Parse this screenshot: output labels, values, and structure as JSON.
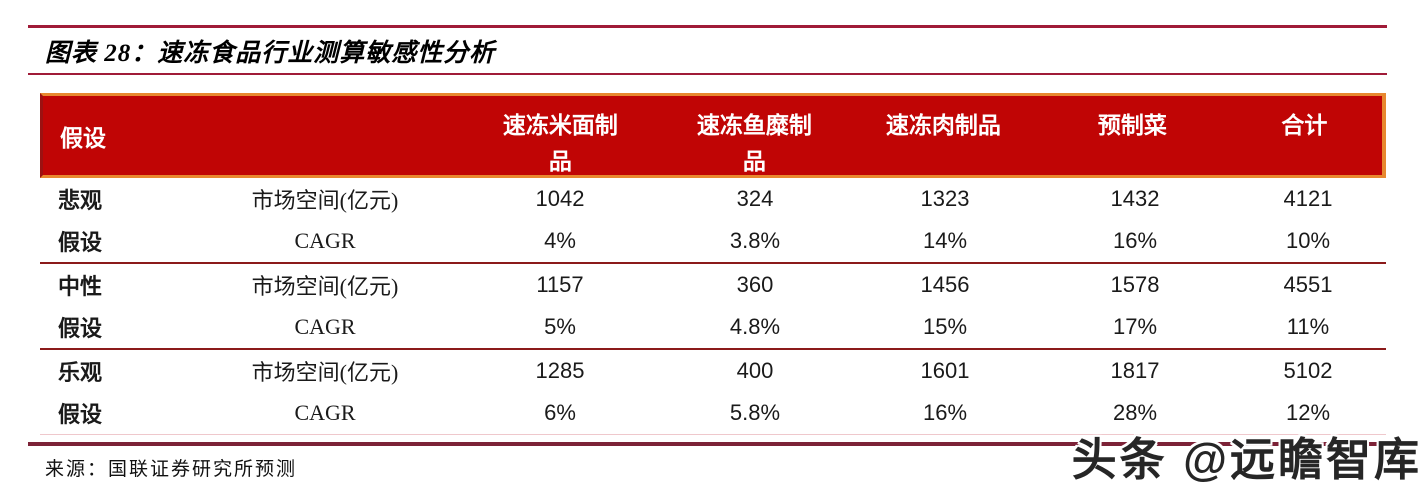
{
  "page": {
    "title": "图表 28：速冻食品行业测算敏感性分析",
    "source": "来源：国联证券研究所预测",
    "watermark": "头条 @远瞻智库"
  },
  "colors": {
    "header_bg": "#C00505",
    "header_text": "#FFFFFF",
    "header_border_orange": "#E8882F",
    "header_border_dark_red": "#9C1111",
    "title_rule": "#A01B38",
    "group_separator_rule": "#8B1A1A",
    "bottom_rule": "#7C2237",
    "body_text": "#1A1A1A"
  },
  "table": {
    "header": {
      "col_assumption": "假设",
      "col_metric": "",
      "col1": "速冻米面制\n品",
      "col2": "速冻鱼糜制\n品",
      "col3": "速冻肉制品",
      "col4": "预制菜",
      "col5": "合计"
    },
    "groups": [
      {
        "label_top": "悲观",
        "label_bottom": "假设",
        "rows": [
          {
            "metric": "市场空间(亿元)",
            "values": [
              "1042",
              "324",
              "1323",
              "1432",
              "4121"
            ]
          },
          {
            "metric": "CAGR",
            "values": [
              "4%",
              "3.8%",
              "14%",
              "16%",
              "10%"
            ]
          }
        ]
      },
      {
        "label_top": "中性",
        "label_bottom": "假设",
        "rows": [
          {
            "metric": "市场空间(亿元)",
            "values": [
              "1157",
              "360",
              "1456",
              "1578",
              "4551"
            ]
          },
          {
            "metric": "CAGR",
            "values": [
              "5%",
              "4.8%",
              "15%",
              "17%",
              "11%"
            ]
          }
        ]
      },
      {
        "label_top": "乐观",
        "label_bottom": "假设",
        "rows": [
          {
            "metric": "市场空间(亿元)",
            "values": [
              "1285",
              "400",
              "1601",
              "1817",
              "5102"
            ]
          },
          {
            "metric": "CAGR",
            "values": [
              "6%",
              "5.8%",
              "16%",
              "28%",
              "12%"
            ]
          }
        ]
      }
    ]
  },
  "chart_data": {
    "type": "table",
    "title": "图表 28：速冻食品行业测算敏感性分析",
    "columns": [
      "假设",
      "",
      "速冻米面制品",
      "速冻鱼糜制品",
      "速冻肉制品",
      "预制菜",
      "合计"
    ],
    "rows": [
      [
        "悲观假设",
        "市场空间(亿元)",
        1042,
        324,
        1323,
        1432,
        4121
      ],
      [
        "悲观假设",
        "CAGR",
        "4%",
        "3.8%",
        "14%",
        "16%",
        "10%"
      ],
      [
        "中性假设",
        "市场空间(亿元)",
        1157,
        360,
        1456,
        1578,
        4551
      ],
      [
        "中性假设",
        "CAGR",
        "5%",
        "4.8%",
        "15%",
        "17%",
        "11%"
      ],
      [
        "乐观假设",
        "市场空间(亿元)",
        1285,
        400,
        1601,
        1817,
        5102
      ],
      [
        "乐观假设",
        "CAGR",
        "6%",
        "5.8%",
        "16%",
        "28%",
        "12%"
      ]
    ],
    "source": "来源：国联证券研究所预测",
    "layout_hints": {
      "header_bg": "#C00505",
      "header_text_color": "#FFFFFF",
      "grid": "group-separators-only"
    }
  }
}
